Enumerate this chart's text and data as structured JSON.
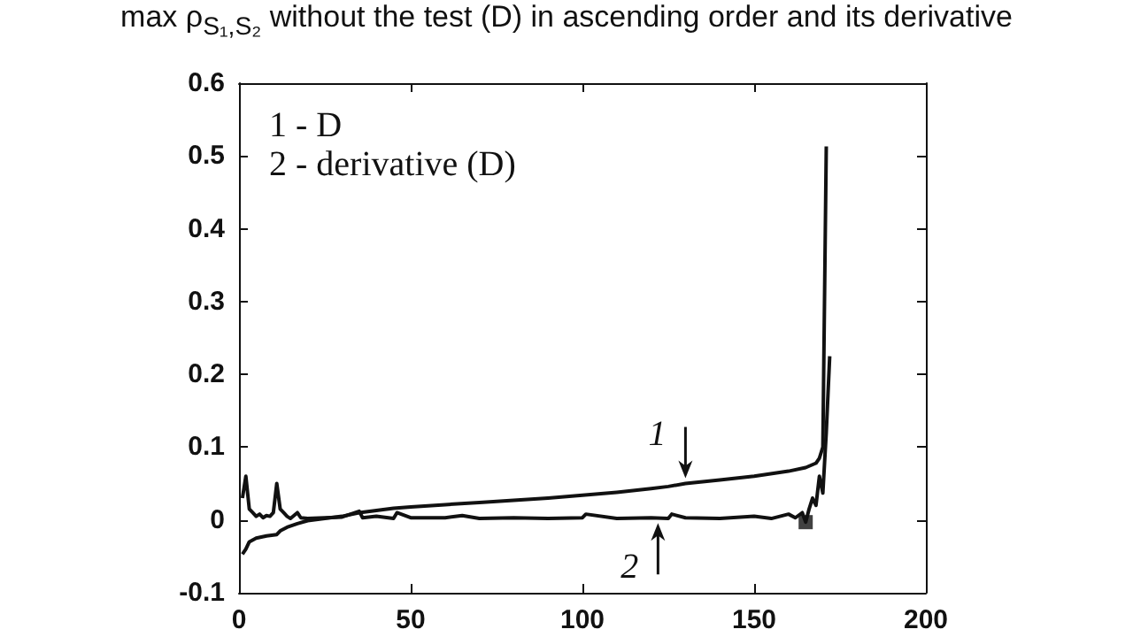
{
  "chart_data": {
    "type": "line",
    "title": "max ρ$_{S₁,S₂}$ without the test (D) in ascending order and its derivative",
    "xlim": [
      0,
      200
    ],
    "xticks": [
      0,
      50,
      100,
      150,
      200
    ],
    "ylim": [
      -0.1,
      0.6
    ],
    "yticks": [
      -0.1,
      0,
      0.1,
      0.2,
      0.3,
      0.4,
      0.5,
      0.6
    ],
    "grid": false,
    "marker": "none",
    "line_style": "solid",
    "annotations": [
      "1 - D",
      "2 - derivative (D)",
      {
        "text": "1",
        "x": 130,
        "y": 0.05
      },
      {
        "text": "2",
        "x": 122,
        "y": 0.003
      }
    ],
    "series": [
      {
        "color": "#111111",
        "x": [
          1,
          2,
          3,
          5,
          8,
          11,
          12,
          14,
          17,
          20,
          25,
          30,
          35,
          40,
          45,
          50,
          60,
          70,
          80,
          90,
          100,
          110,
          120,
          125,
          130,
          140,
          150,
          160,
          165,
          168,
          169,
          170,
          171
        ],
        "values": [
          -0.047,
          -0.04,
          -0.03,
          -0.025,
          -0.022,
          -0.02,
          -0.015,
          -0.01,
          -0.005,
          -0.001,
          0.002,
          0.005,
          0.01,
          0.013,
          0.016,
          0.018,
          0.021,
          0.024,
          0.027,
          0.03,
          0.034,
          0.038,
          0.043,
          0.046,
          0.05,
          0.055,
          0.06,
          0.067,
          0.072,
          0.078,
          0.085,
          0.1,
          0.513
        ]
      },
      {
        "color": "#111111",
        "x": [
          1,
          2,
          3,
          4,
          5,
          6,
          7,
          8,
          9,
          10,
          11,
          12,
          13,
          14,
          15,
          17,
          18,
          20,
          25,
          30,
          35,
          36,
          40,
          45,
          46,
          50,
          60,
          65,
          70,
          80,
          90,
          100,
          101,
          110,
          120,
          125,
          126,
          130,
          140,
          150,
          155,
          160,
          162,
          164,
          165,
          166,
          167,
          168,
          169,
          170,
          171,
          172
        ],
        "values": [
          0.03,
          0.06,
          0.015,
          0.01,
          0.005,
          0.008,
          0.003,
          0.006,
          0.005,
          0.01,
          0.05,
          0.015,
          0.01,
          0.005,
          0.002,
          0.01,
          0.003,
          0.002,
          0.003,
          0.004,
          0.012,
          0.003,
          0.005,
          0.002,
          0.01,
          0.003,
          0.003,
          0.006,
          0.002,
          0.003,
          0.002,
          0.003,
          0.008,
          0.002,
          0.003,
          0.002,
          0.008,
          0.003,
          0.002,
          0.005,
          0.002,
          0.008,
          0.003,
          0.01,
          -0.003,
          0.015,
          0.03,
          0.02,
          0.06,
          0.037,
          0.12,
          0.225
        ]
      },
      {
        "type": "scatter",
        "marker": "square",
        "color": "#111111",
        "x": [
          165
        ],
        "values": [
          -0.003
        ]
      }
    ]
  }
}
